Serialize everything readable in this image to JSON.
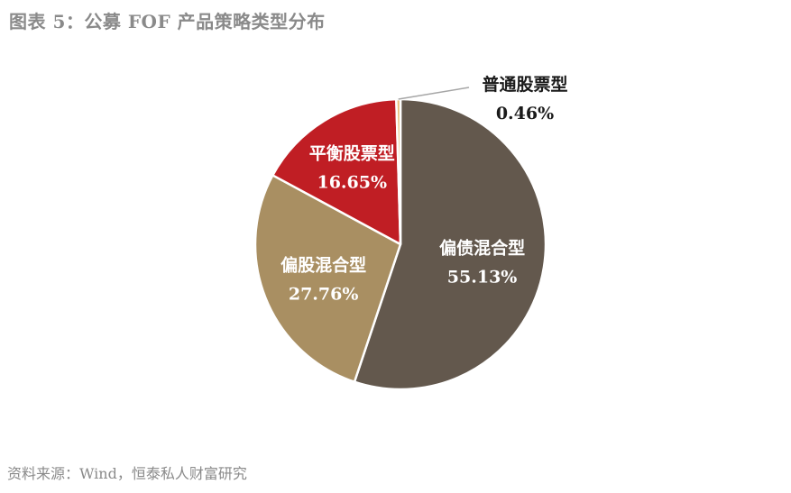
{
  "title": "图表 5：公募 FOF 产品策略类型分布",
  "source": "资料来源：Wind，恒泰私人财富研究",
  "chart_data": {
    "type": "pie",
    "title": "图表 5：公募 FOF 产品策略类型分布",
    "slices": [
      {
        "name": "偏债混合型",
        "value": 55.13,
        "label": "55.13%",
        "color": "#63584d",
        "text_color": "#ffffff"
      },
      {
        "name": "偏股混合型",
        "value": 27.76,
        "label": "27.76%",
        "color": "#a98f62",
        "text_color": "#ffffff"
      },
      {
        "name": "平衡股票型",
        "value": 16.65,
        "label": "16.65%",
        "color": "#c01e24",
        "text_color": "#ffffff"
      },
      {
        "name": "普通股票型",
        "value": 0.46,
        "label": "0.46%",
        "color": "#e9c27c",
        "text_color": "#1a1a1a"
      }
    ],
    "start": "12 o'clock",
    "direction": "clockwise",
    "legend": "none"
  }
}
